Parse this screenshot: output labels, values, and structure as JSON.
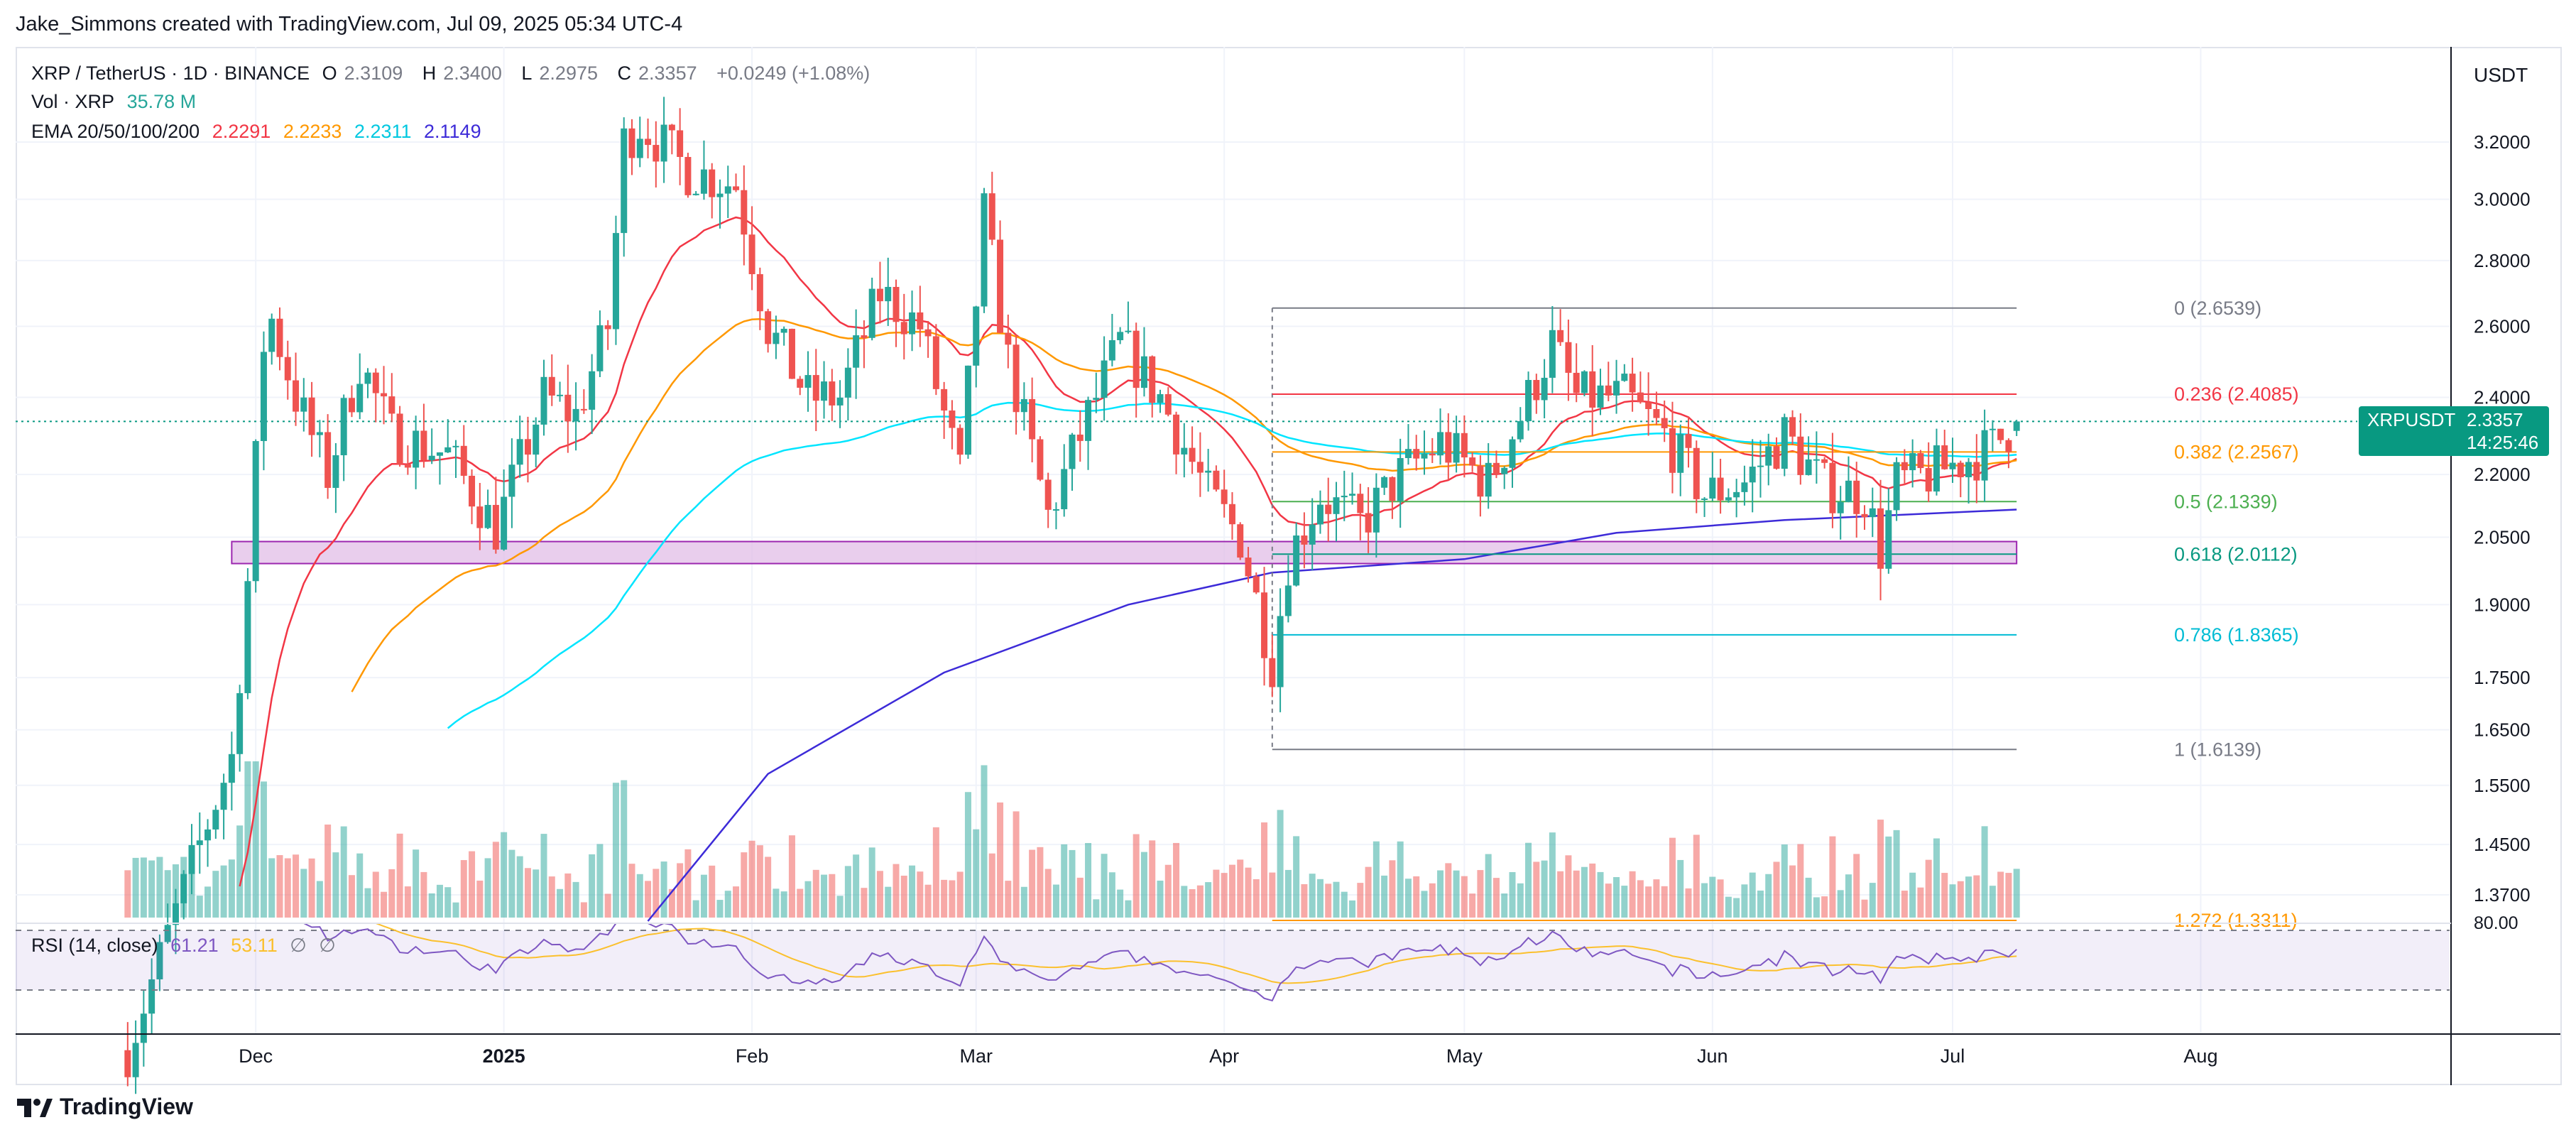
{
  "header": {
    "attribution": "Jake_Simmons created with TradingView.com, Jul 09, 2025 05:34 UTC-4"
  },
  "legend": {
    "symbol_line": "XRP / TetherUS · 1D · BINANCE",
    "open_label": "O",
    "open": "2.3109",
    "high_label": "H",
    "high": "2.3400",
    "low_label": "L",
    "low": "2.2975",
    "close_label": "C",
    "close": "2.3357",
    "change": "+0.0249 (+1.08%)",
    "vol_label": "Vol · XRP",
    "vol_value": "35.78 M",
    "ema_label": "EMA 20/50/100/200",
    "ema20": "2.2291",
    "ema50": "2.2233",
    "ema100": "2.2311",
    "ema200": "2.1149",
    "rsi_label": "RSI (14, close)",
    "rsi_value": "61.21",
    "rsi_ma": "53.11",
    "rsi_na1": "∅",
    "rsi_na2": "∅"
  },
  "price_axis": {
    "currency": "USDT",
    "ticks": [
      "3.2000",
      "3.0000",
      "2.8000",
      "2.6000",
      "2.4000",
      "2.2000",
      "2.0500",
      "1.9000",
      "1.7500",
      "1.6500",
      "1.5500",
      "1.4500",
      "1.3700"
    ],
    "rsi_tick": "80.00",
    "current_symbol": "XRPUSDT",
    "current_price": "2.3357",
    "countdown": "14:25:46"
  },
  "time_axis": {
    "labels": [
      "Dec",
      "2025",
      "Feb",
      "Mar",
      "Apr",
      "May",
      "Jun",
      "Jul",
      "Aug"
    ]
  },
  "fib_levels": [
    {
      "label": "0 (2.6539)",
      "value": 2.6539,
      "color": "#787b86"
    },
    {
      "label": "0.236 (2.4085)",
      "value": 2.4085,
      "color": "#f23645"
    },
    {
      "label": "0.382 (2.2567)",
      "value": 2.2567,
      "color": "#ff9800"
    },
    {
      "label": "0.5 (2.1339)",
      "value": 2.1339,
      "color": "#4caf50"
    },
    {
      "label": "0.618 (2.0112)",
      "value": 2.0112,
      "color": "#089981"
    },
    {
      "label": "0.786 (1.8365)",
      "value": 1.8365,
      "color": "#00bcd4"
    },
    {
      "label": "1 (1.6139)",
      "value": 1.6139,
      "color": "#787b86"
    },
    {
      "label": "1.272 (1.3311)",
      "value": 1.3311,
      "color": "#ff9800"
    }
  ],
  "colors": {
    "up": "#26a69a",
    "down": "#ef5350",
    "ema20": "#f23645",
    "ema50": "#ff9800",
    "ema100": "#00e5ff",
    "ema200": "#3d2bd8",
    "rsi": "#7e57c2",
    "rsi_ma": "#fbc02d",
    "zone": "#e1bee7",
    "accent": "#089981"
  },
  "chart_data": {
    "type": "candlestick",
    "symbol": "XRP / TetherUS",
    "timeframe": "1D",
    "y_scale": "log",
    "ylim": [
      1.33,
      3.4
    ],
    "demand_zone": [
      1.99,
      2.04
    ],
    "anchors": [
      {
        "date": "2024-11-15",
        "close": 1.15
      },
      {
        "date": "2024-11-24",
        "close": 1.45
      },
      {
        "date": "2024-11-28",
        "close": 1.6
      },
      {
        "date": "2024-11-30",
        "close": 1.95
      },
      {
        "date": "2024-12-02",
        "close": 2.55
      },
      {
        "date": "2024-12-03",
        "close": 2.62
      },
      {
        "date": "2024-12-06",
        "close": 2.4
      },
      {
        "date": "2024-12-10",
        "close": 2.2
      },
      {
        "date": "2024-12-14",
        "close": 2.5
      },
      {
        "date": "2024-12-18",
        "close": 2.3
      },
      {
        "date": "2024-12-25",
        "close": 2.25
      },
      {
        "date": "2024-12-31",
        "close": 2.07
      },
      {
        "date": "2025-01-06",
        "close": 2.4
      },
      {
        "date": "2025-01-10",
        "close": 2.35
      },
      {
        "date": "2025-01-14",
        "close": 2.6
      },
      {
        "date": "2025-01-16",
        "close": 3.2
      },
      {
        "date": "2025-01-18",
        "close": 3.27
      },
      {
        "date": "2025-01-24",
        "close": 3.1
      },
      {
        "date": "2025-01-30",
        "close": 3.05
      },
      {
        "date": "2025-02-03",
        "close": 2.6
      },
      {
        "date": "2025-02-08",
        "close": 2.4
      },
      {
        "date": "2025-02-12",
        "close": 2.4
      },
      {
        "date": "2025-02-17",
        "close": 2.7
      },
      {
        "date": "2025-02-22",
        "close": 2.6
      },
      {
        "date": "2025-02-27",
        "close": 2.2
      },
      {
        "date": "2025-03-02",
        "close": 2.95
      },
      {
        "date": "2025-03-05",
        "close": 2.5
      },
      {
        "date": "2025-03-10",
        "close": 2.1
      },
      {
        "date": "2025-03-15",
        "close": 2.35
      },
      {
        "date": "2025-03-19",
        "close": 2.55
      },
      {
        "date": "2025-03-24",
        "close": 2.4
      },
      {
        "date": "2025-03-30",
        "close": 2.15
      },
      {
        "date": "2025-04-03",
        "close": 2.05
      },
      {
        "date": "2025-04-07",
        "close": 1.78
      },
      {
        "date": "2025-04-09",
        "close": 2.0
      },
      {
        "date": "2025-04-13",
        "close": 2.15
      },
      {
        "date": "2025-04-18",
        "close": 2.08
      },
      {
        "date": "2025-04-23",
        "close": 2.2
      },
      {
        "date": "2025-04-28",
        "close": 2.28
      },
      {
        "date": "2025-05-04",
        "close": 2.18
      },
      {
        "date": "2025-05-08",
        "close": 2.35
      },
      {
        "date": "2025-05-12",
        "close": 2.55
      },
      {
        "date": "2025-05-15",
        "close": 2.4
      },
      {
        "date": "2025-05-21",
        "close": 2.4
      },
      {
        "date": "2025-05-26",
        "close": 2.3
      },
      {
        "date": "2025-05-31",
        "close": 2.15
      },
      {
        "date": "2025-06-05",
        "close": 2.18
      },
      {
        "date": "2025-06-10",
        "close": 2.3
      },
      {
        "date": "2025-06-15",
        "close": 2.17
      },
      {
        "date": "2025-06-20",
        "close": 2.15
      },
      {
        "date": "2025-06-22",
        "close": 2.02
      },
      {
        "date": "2025-06-24",
        "close": 2.18
      },
      {
        "date": "2025-06-28",
        "close": 2.2
      },
      {
        "date": "2025-07-03",
        "close": 2.24
      },
      {
        "date": "2025-07-06",
        "close": 2.27
      },
      {
        "date": "2025-07-09",
        "close": 2.3357
      }
    ],
    "ema200_path": [
      {
        "date": "2025-01-19",
        "v": 1.33
      },
      {
        "date": "2025-02-03",
        "v": 1.57
      },
      {
        "date": "2025-02-25",
        "v": 1.76
      },
      {
        "date": "2025-03-20",
        "v": 1.9
      },
      {
        "date": "2025-04-07",
        "v": 1.97
      },
      {
        "date": "2025-05-01",
        "v": 2.0
      },
      {
        "date": "2025-05-20",
        "v": 2.06
      },
      {
        "date": "2025-06-10",
        "v": 2.09
      },
      {
        "date": "2025-07-09",
        "v": 2.1149
      }
    ],
    "last_ohlc": {
      "open": 2.3109,
      "high": 2.34,
      "low": 2.2975,
      "close": 2.3357
    },
    "fib_start_date": "2025-04-07",
    "fib_end_date": "2025-07-09"
  }
}
